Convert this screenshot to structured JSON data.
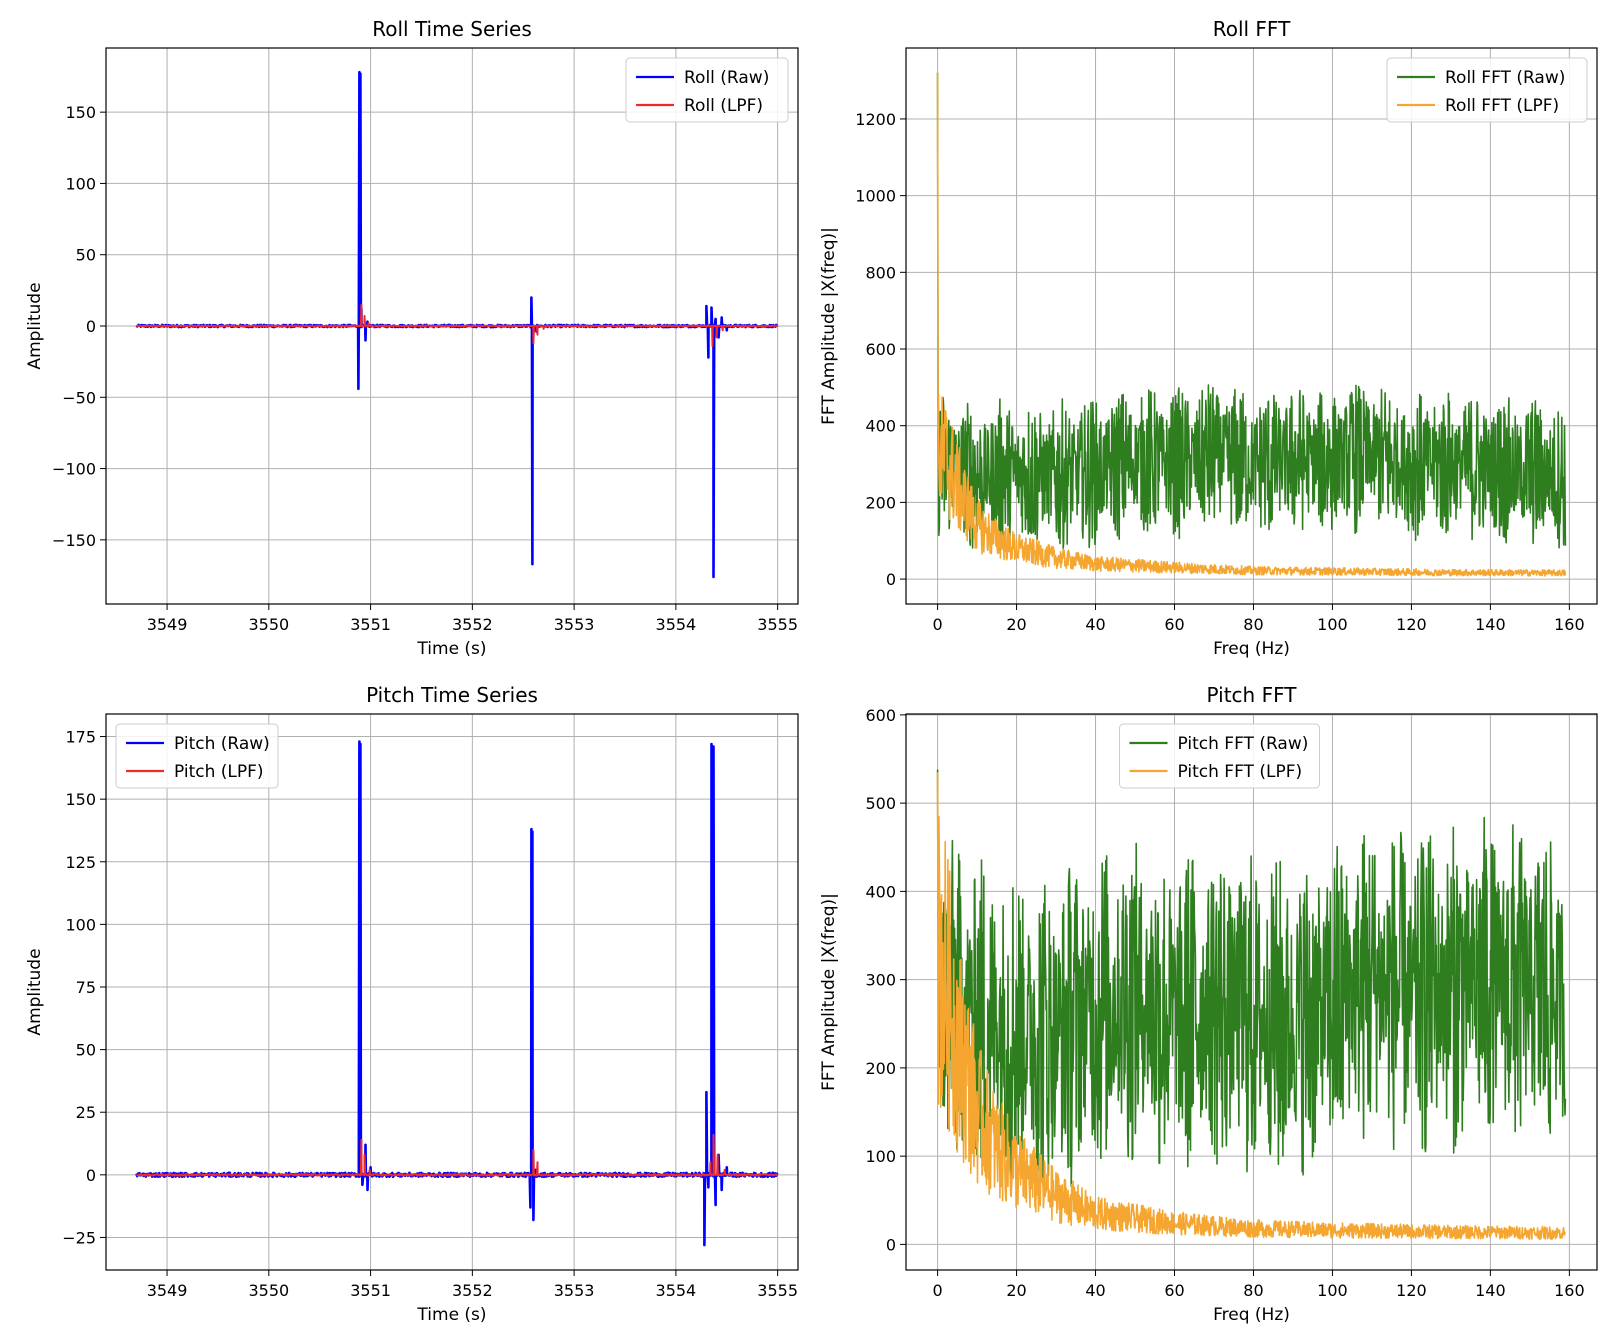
{
  "chart_data": [
    {
      "id": "roll_time",
      "type": "line",
      "title": "Roll Time Series",
      "xlabel": "Time (s)",
      "ylabel": "Amplitude",
      "xlim": [
        3548.4,
        3555.2
      ],
      "ylim": [
        -195,
        195
      ],
      "xticks": [
        3549,
        3550,
        3551,
        3552,
        3553,
        3554,
        3555
      ],
      "yticks": [
        -150,
        -100,
        -50,
        0,
        50,
        100,
        150
      ],
      "ytick_labels": [
        "−150",
        "−100",
        "−50",
        "0",
        "50",
        "100",
        "150"
      ],
      "grid": true,
      "legend_position": "top-right",
      "x_start": 3548.7,
      "x_end": 3555.0,
      "baseline": 0,
      "noise": 0.8,
      "series": [
        {
          "name": "Roll (Raw)",
          "color": "#0000ff",
          "points": [
            [
              3550.88,
              -44
            ],
            [
              3550.89,
              178
            ],
            [
              3550.9,
              177
            ],
            [
              3550.91,
              12
            ],
            [
              3550.95,
              -10
            ],
            [
              3550.97,
              3
            ],
            [
              3552.58,
              20
            ],
            [
              3552.59,
              -167
            ],
            [
              3552.6,
              -5
            ],
            [
              3552.63,
              -4
            ],
            [
              3554.3,
              14
            ],
            [
              3554.32,
              -22
            ],
            [
              3554.35,
              13
            ],
            [
              3554.37,
              -176
            ],
            [
              3554.39,
              5
            ],
            [
              3554.42,
              -8
            ],
            [
              3554.45,
              6
            ],
            [
              3554.5,
              -3
            ]
          ]
        },
        {
          "name": "Roll (LPF)",
          "color": "#ee2a2a",
          "points": [
            [
              3550.89,
              0
            ],
            [
              3550.91,
              15
            ],
            [
              3550.94,
              7
            ],
            [
              3550.98,
              2
            ],
            [
              3551.05,
              0
            ],
            [
              3552.58,
              0
            ],
            [
              3552.6,
              -12
            ],
            [
              3552.64,
              -6
            ],
            [
              3552.7,
              -2
            ],
            [
              3552.78,
              0
            ],
            [
              3554.32,
              0
            ],
            [
              3554.36,
              -14
            ],
            [
              3554.4,
              -8
            ],
            [
              3554.46,
              -3
            ],
            [
              3554.55,
              0
            ]
          ]
        }
      ]
    },
    {
      "id": "roll_fft",
      "type": "line",
      "title": "Roll FFT",
      "xlabel": "Freq (Hz)",
      "ylabel": "FFT Amplitude |X(freq)|",
      "xlim": [
        -8,
        167
      ],
      "ylim": [
        -65,
        1385
      ],
      "xticks": [
        0,
        20,
        40,
        60,
        80,
        100,
        120,
        140,
        160
      ],
      "yticks": [
        0,
        200,
        400,
        600,
        800,
        1000,
        1200
      ],
      "grid": true,
      "legend_position": "top-right",
      "series": [
        {
          "name": "Roll FFT (Raw)",
          "color": "#2e7d1e",
          "freq_max": 159,
          "peak": 1320,
          "envelope": [
            [
              0,
              300
            ],
            [
              5,
              290
            ],
            [
              10,
              270
            ],
            [
              20,
              280
            ],
            [
              30,
              270
            ],
            [
              40,
              280
            ],
            [
              50,
              310
            ],
            [
              60,
              300
            ],
            [
              70,
              320
            ],
            [
              80,
              300
            ],
            [
              90,
              310
            ],
            [
              100,
              310
            ],
            [
              110,
              320
            ],
            [
              120,
              300
            ],
            [
              130,
              300
            ],
            [
              140,
              290
            ],
            [
              150,
              280
            ],
            [
              159,
              270
            ]
          ],
          "spread": 200
        },
        {
          "name": "Roll FFT (LPF)",
          "color": "#f5a631",
          "freq_max": 159,
          "peak": 1320,
          "envelope": [
            [
              0,
              330
            ],
            [
              2,
              320
            ],
            [
              5,
              240
            ],
            [
              10,
              140
            ],
            [
              15,
              105
            ],
            [
              20,
              80
            ],
            [
              30,
              55
            ],
            [
              40,
              40
            ],
            [
              60,
              30
            ],
            [
              80,
              22
            ],
            [
              100,
              20
            ],
            [
              130,
              17
            ],
            [
              159,
              16
            ]
          ],
          "spread": 0.5
        }
      ]
    },
    {
      "id": "pitch_time",
      "type": "line",
      "title": "Pitch Time Series",
      "xlabel": "Time (s)",
      "ylabel": "Amplitude",
      "xlim": [
        3548.4,
        3555.2
      ],
      "ylim": [
        -38,
        184
      ],
      "xticks": [
        3549,
        3550,
        3551,
        3552,
        3553,
        3554,
        3555
      ],
      "yticks": [
        -25,
        0,
        25,
        50,
        75,
        100,
        125,
        150,
        175
      ],
      "ytick_labels": [
        "−25",
        "0",
        "25",
        "50",
        "75",
        "100",
        "125",
        "150",
        "175"
      ],
      "grid": true,
      "legend_position": "top-left",
      "x_start": 3548.7,
      "x_end": 3555.0,
      "baseline": 0,
      "noise": 0.8,
      "series": [
        {
          "name": "Pitch (Raw)",
          "color": "#0000ff",
          "points": [
            [
              3550.88,
              0
            ],
            [
              3550.89,
              173
            ],
            [
              3550.9,
              172
            ],
            [
              3550.92,
              -4
            ],
            [
              3550.95,
              12
            ],
            [
              3550.97,
              -6
            ],
            [
              3551.0,
              3
            ],
            [
              3552.57,
              -13
            ],
            [
              3552.58,
              138
            ],
            [
              3552.59,
              137
            ],
            [
              3552.6,
              -18
            ],
            [
              3552.62,
              2
            ],
            [
              3554.28,
              -28
            ],
            [
              3554.3,
              33
            ],
            [
              3554.32,
              -5
            ],
            [
              3554.35,
              172
            ],
            [
              3554.37,
              171
            ],
            [
              3554.39,
              -12
            ],
            [
              3554.42,
              8
            ],
            [
              3554.45,
              -6
            ],
            [
              3554.5,
              3
            ]
          ]
        },
        {
          "name": "Pitch (LPF)",
          "color": "#ee2a2a",
          "points": [
            [
              3550.89,
              0
            ],
            [
              3550.91,
              14
            ],
            [
              3550.94,
              8
            ],
            [
              3550.99,
              2
            ],
            [
              3551.06,
              0
            ],
            [
              3552.58,
              0
            ],
            [
              3552.6,
              10
            ],
            [
              3552.64,
              5
            ],
            [
              3552.72,
              0
            ],
            [
              3554.3,
              0
            ],
            [
              3554.34,
              5
            ],
            [
              3554.37,
              16
            ],
            [
              3554.41,
              8
            ],
            [
              3554.48,
              2
            ],
            [
              3554.55,
              0
            ]
          ]
        }
      ]
    },
    {
      "id": "pitch_fft",
      "type": "line",
      "title": "Pitch FFT",
      "xlabel": "Freq (Hz)",
      "ylabel": "FFT Amplitude |X(freq)|",
      "xlim": [
        -8,
        167
      ],
      "ylim": [
        -29,
        601
      ],
      "xticks": [
        0,
        20,
        40,
        60,
        80,
        100,
        120,
        140,
        160
      ],
      "yticks": [
        0,
        100,
        200,
        300,
        400,
        500,
        600
      ],
      "grid": true,
      "legend_position": "top-center",
      "series": [
        {
          "name": "Pitch FFT (Raw)",
          "color": "#2e7d1e",
          "freq_max": 159,
          "peak": 538,
          "envelope": [
            [
              0,
              280
            ],
            [
              5,
              270
            ],
            [
              10,
              260
            ],
            [
              20,
              250
            ],
            [
              30,
              240
            ],
            [
              40,
              270
            ],
            [
              50,
              280
            ],
            [
              60,
              260
            ],
            [
              70,
              270
            ],
            [
              80,
              260
            ],
            [
              90,
              250
            ],
            [
              100,
              270
            ],
            [
              110,
              300
            ],
            [
              120,
              280
            ],
            [
              130,
              290
            ],
            [
              140,
              300
            ],
            [
              150,
              290
            ],
            [
              159,
              280
            ]
          ],
          "spread": 190
        },
        {
          "name": "Pitch FFT (LPF)",
          "color": "#f5a631",
          "freq_max": 159,
          "peak": 535,
          "envelope": [
            [
              0,
              330
            ],
            [
              2,
              300
            ],
            [
              5,
              230
            ],
            [
              10,
              150
            ],
            [
              15,
              110
            ],
            [
              20,
              85
            ],
            [
              30,
              55
            ],
            [
              40,
              35
            ],
            [
              60,
              24
            ],
            [
              80,
              18
            ],
            [
              100,
              16
            ],
            [
              130,
              14
            ],
            [
              159,
              13
            ]
          ],
          "spread": 0.55
        }
      ]
    }
  ]
}
